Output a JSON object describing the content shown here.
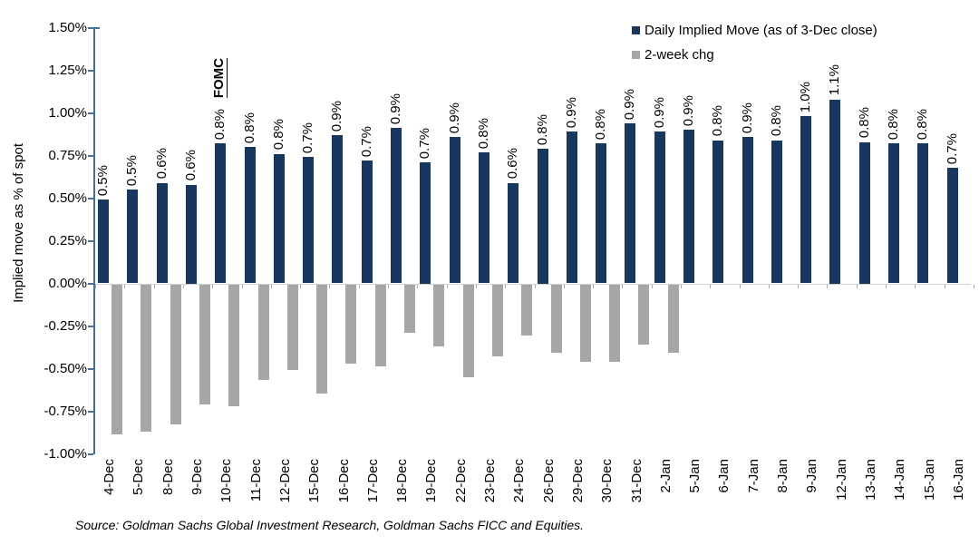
{
  "legend": {
    "items": [
      {
        "label": "Daily Implied Move (as of 3-Dec close)",
        "color": "#17375e"
      },
      {
        "label": "2-week chg",
        "color": "#a6a6a6"
      }
    ]
  },
  "y_axis": {
    "title": "Implied move as % of spot",
    "ticks": [
      "1.50%",
      "1.25%",
      "1.00%",
      "0.75%",
      "0.50%",
      "0.25%",
      "0.00%",
      "-0.25%",
      "-0.50%",
      "-0.75%",
      "-1.00%"
    ],
    "max": 1.5,
    "min": -1.0,
    "step": 0.25
  },
  "annotation": {
    "fomc_label": "FOMC",
    "fomc_date": "10-Dec"
  },
  "source": "Source: Goldman Sachs Global Investment Research, Goldman Sachs FICC and Equities.",
  "colors": {
    "implied_move": "#17375e",
    "two_week_chg": "#a6a6a6",
    "axis": "#44719c",
    "text": "#000000"
  },
  "chart_data": {
    "type": "bar",
    "title": "",
    "xlabel": "",
    "ylabel": "Implied move as % of spot",
    "ylim": [
      -1.0,
      1.5
    ],
    "grid": false,
    "legend_position": "top-right",
    "categories": [
      "4-Dec",
      "5-Dec",
      "8-Dec",
      "9-Dec",
      "10-Dec",
      "11-Dec",
      "12-Dec",
      "15-Dec",
      "16-Dec",
      "17-Dec",
      "18-Dec",
      "19-Dec",
      "22-Dec",
      "23-Dec",
      "24-Dec",
      "26-Dec",
      "29-Dec",
      "30-Dec",
      "31-Dec",
      "2-Jan",
      "5-Jan",
      "6-Jan",
      "7-Jan",
      "8-Jan",
      "9-Jan",
      "12-Jan",
      "13-Jan",
      "14-Jan",
      "15-Jan",
      "16-Jan"
    ],
    "series": [
      {
        "name": "Daily Implied Move (as of 3-Dec close)",
        "color": "#17375e",
        "values": [
          0.49,
          0.55,
          0.59,
          0.58,
          0.82,
          0.8,
          0.76,
          0.74,
          0.87,
          0.72,
          0.91,
          0.71,
          0.86,
          0.77,
          0.59,
          0.79,
          0.89,
          0.82,
          0.94,
          0.89,
          0.9,
          0.84,
          0.86,
          0.84,
          0.98,
          1.08,
          0.83,
          0.82,
          0.82,
          0.68
        ],
        "labels": [
          "0.5%",
          "0.5%",
          "0.6%",
          "0.6%",
          "0.8%",
          "0.8%",
          "0.8%",
          "0.7%",
          "0.9%",
          "0.7%",
          "0.9%",
          "0.7%",
          "0.9%",
          "0.8%",
          "0.6%",
          "0.8%",
          "0.9%",
          "0.8%",
          "0.9%",
          "0.9%",
          "0.9%",
          "0.8%",
          "0.9%",
          "0.8%",
          "1.0%",
          "1.1%",
          "0.8%",
          "0.8%",
          "0.8%",
          "0.7%"
        ]
      },
      {
        "name": "2-week chg",
        "color": "#a6a6a6",
        "values": [
          -0.88,
          -0.86,
          -0.82,
          -0.7,
          -0.71,
          -0.56,
          -0.5,
          -0.64,
          -0.46,
          -0.48,
          -0.28,
          -0.36,
          -0.54,
          -0.42,
          -0.3,
          -0.4,
          -0.45,
          -0.45,
          -0.35,
          -0.4,
          null,
          null,
          null,
          null,
          null,
          null,
          null,
          null,
          null,
          null
        ]
      }
    ]
  }
}
